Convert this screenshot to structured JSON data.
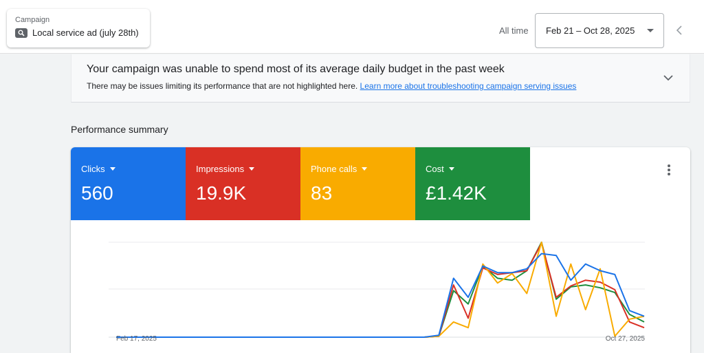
{
  "header": {
    "campaign_label": "Campaign",
    "campaign_name": "Local service ad (july 28th)",
    "campaign_icon": "search-icon",
    "all_time_label": "All time",
    "date_range": "Feb 21 – Oct 28, 2025"
  },
  "alert": {
    "title": "Your campaign was unable to spend most of its average daily budget in the past week",
    "body": "There may be issues limiting its performance that are not highlighted here.",
    "link": "Learn more about troubleshooting campaign serving issues"
  },
  "section_title": "Performance summary",
  "metrics": [
    {
      "label": "Clicks",
      "value": "560",
      "color": "#1a73e8"
    },
    {
      "label": "Impressions",
      "value": "19.9K",
      "color": "#d93025"
    },
    {
      "label": "Phone calls",
      "value": "83",
      "color": "#f9ab00"
    },
    {
      "label": "Cost",
      "value": "£1.42K",
      "color": "#1e8e3e"
    }
  ],
  "chart_data": {
    "type": "line",
    "x_start_label": "Feb 17, 2025",
    "x_end_label": "Oct 27, 2025",
    "grid": true,
    "n_points": 37,
    "y_scale": "normalized 0-1 per metric (no y-axis labels shown)",
    "series": [
      {
        "name": "Clicks",
        "color": "#1a73e8",
        "values": [
          0,
          0,
          0,
          0,
          0,
          0,
          0,
          0,
          0,
          0,
          0,
          0,
          0,
          0,
          0,
          0,
          0,
          0,
          0,
          0,
          0,
          0,
          0.02,
          0.62,
          0.42,
          0.75,
          0.68,
          0.68,
          0.72,
          0.88,
          0.86,
          0.6,
          0.77,
          0.7,
          0.66,
          0.28,
          0.22
        ]
      },
      {
        "name": "Impressions",
        "color": "#d93025",
        "values": [
          0,
          0,
          0,
          0,
          0,
          0,
          0,
          0,
          0,
          0,
          0,
          0,
          0,
          0,
          0,
          0,
          0,
          0,
          0,
          0,
          0,
          0,
          0.01,
          0.55,
          0.2,
          0.73,
          0.66,
          0.68,
          0.7,
          0.99,
          0.42,
          0.54,
          0.6,
          0.58,
          0.5,
          0.16,
          0.1
        ]
      },
      {
        "name": "Phone calls",
        "color": "#f9ab00",
        "values": [
          0,
          0,
          0,
          0,
          0,
          0,
          0,
          0,
          0,
          0,
          0,
          0,
          0,
          0,
          0,
          0,
          0,
          0,
          0,
          0,
          0,
          0,
          0.01,
          0.16,
          0.1,
          0.77,
          0.57,
          0.67,
          0.46,
          1.0,
          0.22,
          0.77,
          0.29,
          0.72,
          0.01,
          0.19,
          0.22
        ]
      },
      {
        "name": "Cost",
        "color": "#1e8e3e",
        "values": [
          0,
          0,
          0,
          0,
          0,
          0,
          0,
          0,
          0,
          0,
          0,
          0,
          0,
          0,
          0,
          0,
          0,
          0,
          0,
          0,
          0,
          0,
          0.01,
          0.49,
          0.35,
          0.75,
          0.62,
          0.6,
          0.7,
          1.0,
          0.4,
          0.53,
          0.55,
          0.52,
          0.47,
          0.24,
          0.16
        ]
      }
    ]
  }
}
